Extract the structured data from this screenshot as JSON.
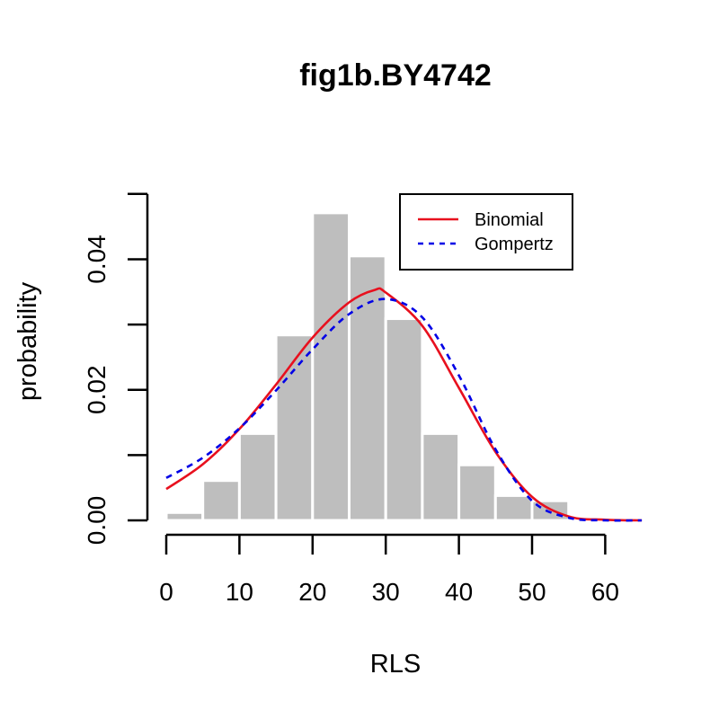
{
  "chart_data": {
    "type": "bar",
    "title": "fig1b.BY4742",
    "xlabel": "RLS",
    "ylabel": "probability",
    "xlim": [
      0,
      65
    ],
    "ylim": [
      0,
      0.05
    ],
    "x_ticks": [
      0,
      10,
      20,
      30,
      40,
      50,
      60
    ],
    "x_tick_labels": [
      "0",
      "10",
      "20",
      "30",
      "40",
      "50",
      "60"
    ],
    "y_ticks": [
      0,
      0.02,
      0.04
    ],
    "y_tick_labels": [
      "0.00",
      "0.02",
      "0.04"
    ],
    "y_minor_ticks": [
      0.01,
      0.03,
      0.05
    ],
    "histogram": {
      "bin_width": 5,
      "bin_starts": [
        0,
        5,
        10,
        15,
        20,
        25,
        30,
        35,
        40,
        45,
        50,
        55,
        60
      ],
      "values": [
        0.0012,
        0.0061,
        0.0133,
        0.0284,
        0.0471,
        0.0405,
        0.0309,
        0.0133,
        0.0085,
        0.0038,
        0.003,
        0.0004,
        0.0002
      ],
      "color": "#bebebe"
    },
    "series": [
      {
        "name": "Binomial",
        "color": "#e8101e",
        "style": "solid",
        "x": [
          0,
          5,
          10,
          15,
          20,
          25,
          28.5,
          30,
          35,
          40,
          45,
          50,
          55,
          60,
          65
        ],
        "y": [
          0.0048,
          0.0086,
          0.014,
          0.0208,
          0.028,
          0.0334,
          0.0353,
          0.0349,
          0.0298,
          0.0203,
          0.0105,
          0.0036,
          0.0006,
          0.0001,
          0.0
        ]
      },
      {
        "name": "Gompertz",
        "color": "#0000e6",
        "style": "dashed",
        "x": [
          0,
          5,
          10,
          15,
          20,
          25,
          30,
          35,
          40,
          45,
          50,
          55,
          60,
          65
        ],
        "y": [
          0.0065,
          0.0096,
          0.0141,
          0.0199,
          0.0262,
          0.0316,
          0.0339,
          0.0311,
          0.0222,
          0.0109,
          0.003,
          0.0004,
          0.0,
          0.0
        ]
      }
    ],
    "legend": {
      "position": "top-right",
      "entries": [
        "Binomial",
        "Gompertz"
      ]
    }
  }
}
